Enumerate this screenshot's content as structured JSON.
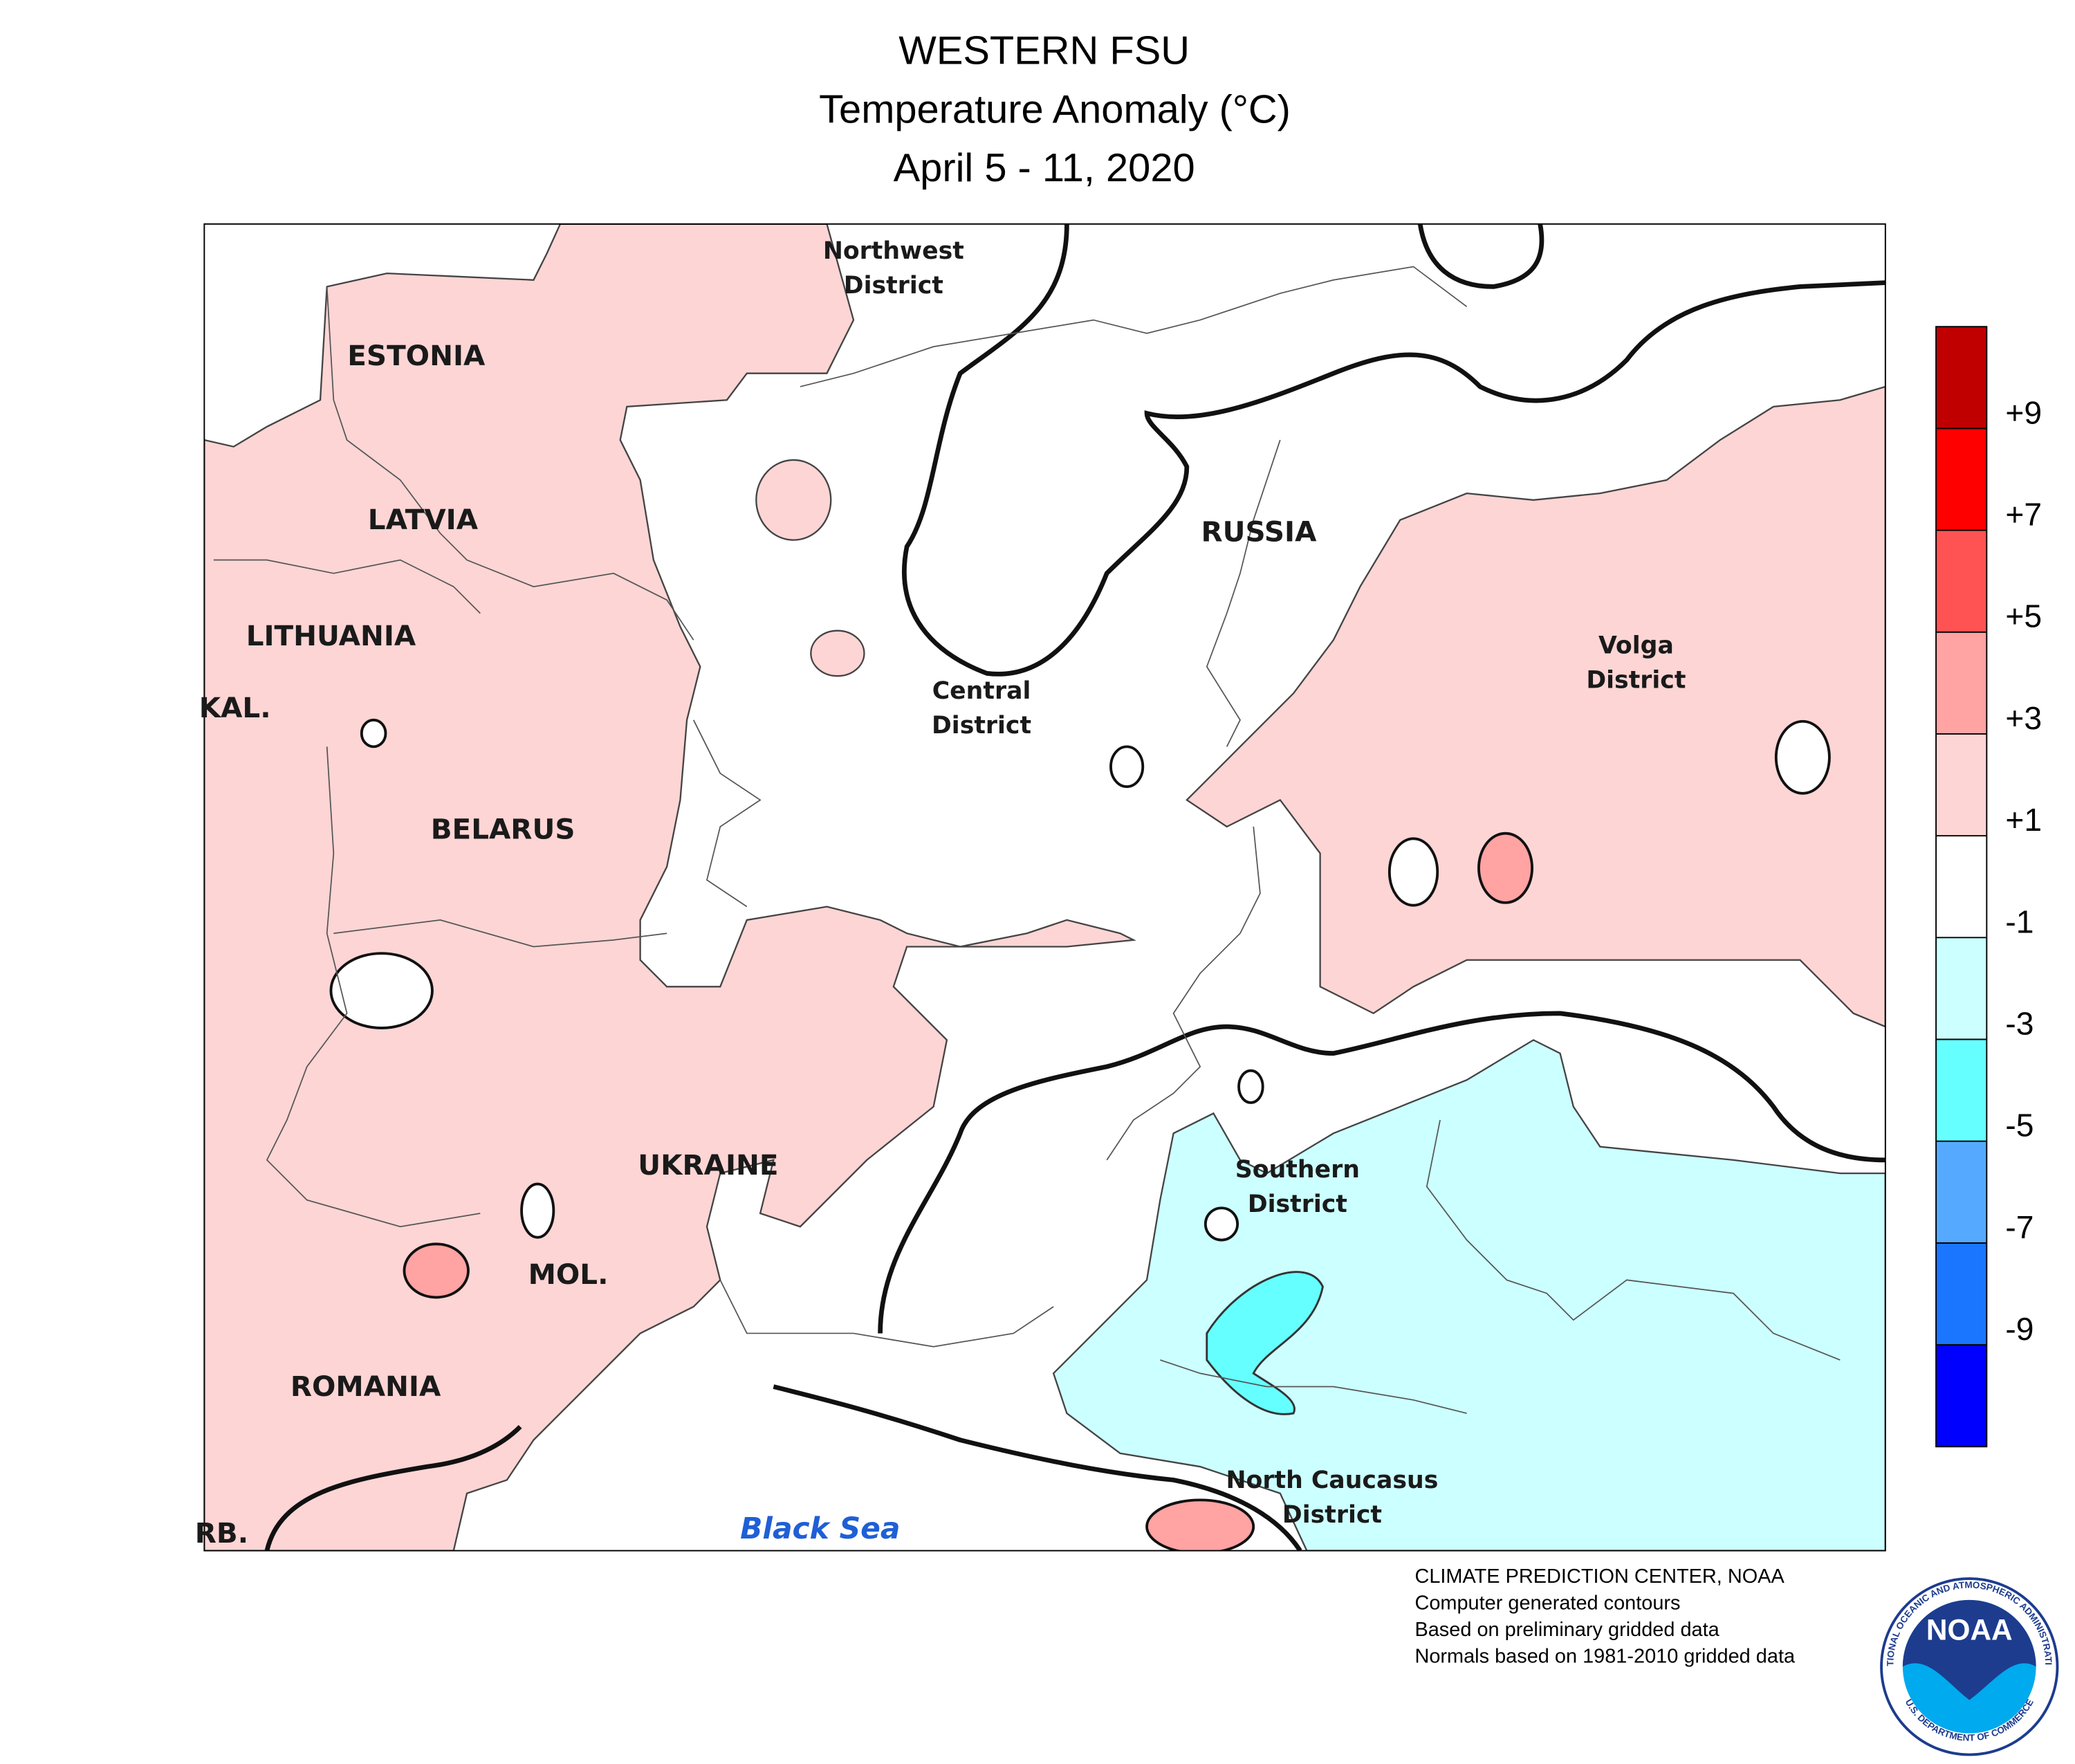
{
  "header": {
    "title": [
      "WESTERN FSU",
      "Temperature Anomaly (°C)",
      "April 5 - 11, 2020"
    ]
  },
  "map": {
    "labels": {
      "northwest": [
        "Northwest",
        "District"
      ],
      "estonia": "ESTONIA",
      "latvia": "LATVIA",
      "lithuania": "LITHUANIA",
      "kal": "KAL.",
      "belarus": "BELARUS",
      "russia": "RUSSIA",
      "central": [
        "Central",
        "District"
      ],
      "volga": [
        "Volga",
        "District"
      ],
      "ukraine": "UKRAINE",
      "southern": [
        "Southern",
        "District"
      ],
      "mol": "MOL.",
      "romania": "ROMANIA",
      "north_caucasus": [
        "North Caucasus",
        "District"
      ],
      "serb": "RB.",
      "black_sea": "Black Sea"
    }
  },
  "legend": {
    "colors": [
      "#c00000",
      "#ff0000",
      "#ff5353",
      "#ffa3a3",
      "#fdd5d5",
      "#ffffff",
      "#ccffff",
      "#66ffff",
      "#55aaff",
      "#1a75ff",
      "#0000ff"
    ],
    "labels": [
      "+9",
      "+7",
      "+5",
      "+3",
      "+1",
      "-1",
      "-3",
      "-5",
      "-7",
      "-9"
    ]
  },
  "footer": {
    "lines": [
      "CLIMATE PREDICTION CENTER, NOAA",
      "Computer generated contours",
      "Based on preliminary gridded data",
      "Normals based on 1981-2010 gridded data"
    ]
  },
  "logo": {
    "text": "NOAA",
    "ring_top": "NATIONAL OCEANIC AND ATMOSPHERIC ADMINISTRATION",
    "ring_bottom": "U.S. DEPARTMENT OF COMMERCE"
  }
}
